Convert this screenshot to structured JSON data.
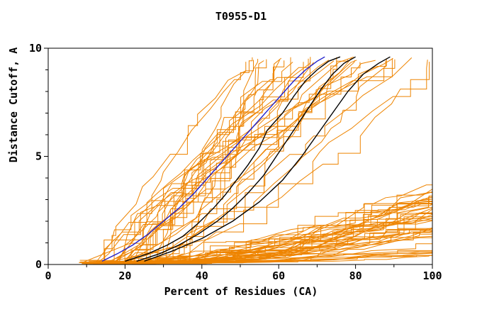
{
  "chart_data": {
    "type": "line",
    "title": "T0955-D1",
    "xlabel": "Percent of Residues (CA)",
    "ylabel": "Distance Cutoff, A",
    "xlim": [
      0,
      100
    ],
    "ylim": [
      0,
      10
    ],
    "x_ticks": [
      0,
      20,
      40,
      60,
      80,
      100
    ],
    "x_minor_step": 10,
    "y_ticks": [
      0,
      5,
      10
    ],
    "y_minor_step": 1,
    "grid": false,
    "legend": "none",
    "colors": {
      "ensemble": "#EE8400",
      "highlight": "#000000",
      "reference": "#2020CC",
      "frame": "#000000",
      "background": "#FFFFFF"
    },
    "series": [
      {
        "name": "reference-model-blue",
        "color": "#2020CC",
        "points": [
          [
            14,
            0.15
          ],
          [
            18,
            0.5
          ],
          [
            22,
            0.9
          ],
          [
            26,
            1.4
          ],
          [
            30,
            2.0
          ],
          [
            34,
            2.6
          ],
          [
            38,
            3.3
          ],
          [
            42,
            4.1
          ],
          [
            46,
            4.9
          ],
          [
            49,
            5.5
          ],
          [
            52,
            6.1
          ],
          [
            55,
            6.7
          ],
          [
            58,
            7.3
          ],
          [
            61,
            7.9
          ],
          [
            64,
            8.5
          ],
          [
            67,
            9.0
          ],
          [
            70,
            9.4
          ],
          [
            72,
            9.6
          ]
        ]
      },
      {
        "name": "highlight-model-black-1",
        "color": "#000000",
        "points": [
          [
            20,
            0.15
          ],
          [
            26,
            0.5
          ],
          [
            31,
            0.9
          ],
          [
            35,
            1.3
          ],
          [
            39,
            1.9
          ],
          [
            43,
            2.6
          ],
          [
            46,
            3.2
          ],
          [
            49,
            3.9
          ],
          [
            52,
            4.6
          ],
          [
            55,
            5.4
          ],
          [
            57,
            6.2
          ],
          [
            61,
            7.0
          ],
          [
            64,
            7.8
          ],
          [
            67,
            8.5
          ],
          [
            70,
            9.0
          ],
          [
            73,
            9.4
          ],
          [
            76,
            9.6
          ]
        ]
      },
      {
        "name": "highlight-model-black-2",
        "color": "#000000",
        "points": [
          [
            23,
            0.15
          ],
          [
            29,
            0.5
          ],
          [
            34,
            0.9
          ],
          [
            39,
            1.4
          ],
          [
            44,
            2.0
          ],
          [
            48,
            2.6
          ],
          [
            52,
            3.3
          ],
          [
            56,
            4.1
          ],
          [
            59,
            4.9
          ],
          [
            62,
            5.7
          ],
          [
            65,
            6.5
          ],
          [
            68,
            7.3
          ],
          [
            71,
            8.1
          ],
          [
            74,
            8.8
          ],
          [
            77,
            9.3
          ],
          [
            80,
            9.6
          ]
        ]
      },
      {
        "name": "highlight-model-black-3",
        "color": "#000000",
        "points": [
          [
            25,
            0.15
          ],
          [
            32,
            0.6
          ],
          [
            40,
            1.2
          ],
          [
            48,
            2.0
          ],
          [
            55,
            2.9
          ],
          [
            61,
            3.9
          ],
          [
            66,
            5.0
          ],
          [
            70,
            6.0
          ],
          [
            74,
            7.0
          ],
          [
            78,
            8.0
          ],
          [
            82,
            8.8
          ],
          [
            86,
            9.3
          ],
          [
            89,
            9.6
          ]
        ]
      }
    ],
    "ensemble": {
      "name": "server-models-orange",
      "color": "#EE8400",
      "count_flat": 48,
      "count_steep": 34,
      "seed": 7,
      "start_percent_range": [
        8,
        32
      ],
      "flat_end_cutoff_range": [
        0.4,
        3.7
      ],
      "steep_end_percent_range": [
        45,
        100
      ],
      "max_cutoff": 9.6
    }
  }
}
